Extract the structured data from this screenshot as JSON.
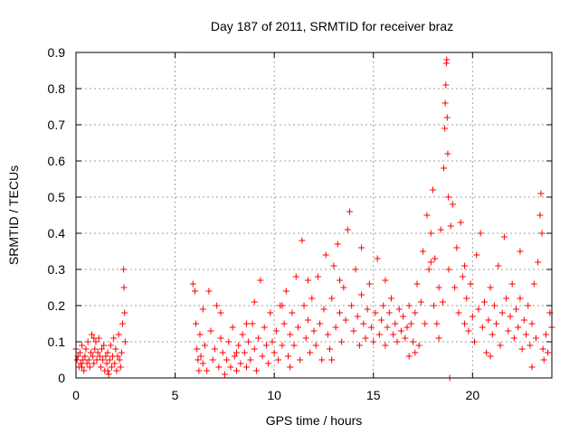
{
  "chart_data": {
    "type": "scatter",
    "title": "Day 187 of 2011, SRMTID for receiver braz",
    "xlabel": "GPS time / hours",
    "ylabel": "SRMTID / TECUs",
    "xlim": [
      0,
      24
    ],
    "ylim": [
      0,
      0.9
    ],
    "xticks": [
      "0",
      "5",
      "10",
      "15",
      "20"
    ],
    "yticks": [
      "0",
      "0.1",
      "0.2",
      "0.3",
      "0.4",
      "0.5",
      "0.6",
      "0.7",
      "0.8",
      "0.9"
    ],
    "grid": true,
    "marker": "+",
    "series": [
      {
        "color": "#ff0000",
        "points": [
          [
            0.0,
            0.08
          ],
          [
            0.05,
            0.05
          ],
          [
            0.1,
            0.06
          ],
          [
            0.15,
            0.03
          ],
          [
            0.2,
            0.07
          ],
          [
            0.25,
            0.04
          ],
          [
            0.3,
            0.09
          ],
          [
            0.35,
            0.05
          ],
          [
            0.4,
            0.02
          ],
          [
            0.45,
            0.06
          ],
          [
            0.5,
            0.08
          ],
          [
            0.55,
            0.04
          ],
          [
            0.6,
            0.1
          ],
          [
            0.65,
            0.05
          ],
          [
            0.7,
            0.03
          ],
          [
            0.75,
            0.07
          ],
          [
            0.8,
            0.12
          ],
          [
            0.85,
            0.06
          ],
          [
            0.9,
            0.04
          ],
          [
            0.95,
            0.08
          ],
          [
            1.0,
            0.1
          ],
          [
            1.05,
            0.05
          ],
          [
            1.1,
            0.07
          ],
          [
            1.15,
            0.11
          ],
          [
            1.2,
            0.06
          ],
          [
            1.25,
            0.03
          ],
          [
            1.3,
            0.08
          ],
          [
            1.35,
            0.05
          ],
          [
            1.4,
            0.09
          ],
          [
            1.45,
            0.02
          ],
          [
            1.5,
            0.06
          ],
          [
            1.55,
            0.04
          ],
          [
            1.6,
            0.07
          ],
          [
            1.65,
            0.01
          ],
          [
            1.7,
            0.05
          ],
          [
            1.75,
            0.09
          ],
          [
            1.8,
            0.03
          ],
          [
            1.85,
            0.06
          ],
          [
            1.9,
            0.11
          ],
          [
            1.95,
            0.04
          ],
          [
            2.0,
            0.08
          ],
          [
            2.05,
            0.02
          ],
          [
            2.1,
            0.06
          ],
          [
            2.15,
            0.12
          ],
          [
            2.2,
            0.05
          ],
          [
            2.25,
            0.03
          ],
          [
            2.3,
            0.07
          ],
          [
            2.35,
            0.15
          ],
          [
            2.4,
            0.3
          ],
          [
            2.42,
            0.25
          ],
          [
            2.45,
            0.18
          ],
          [
            2.48,
            0.1
          ],
          [
            0.3,
            0.03
          ],
          [
            0.9,
            0.11
          ],
          [
            1.6,
            0.02
          ],
          [
            5.9,
            0.26
          ],
          [
            6.0,
            0.24
          ],
          [
            6.05,
            0.15
          ],
          [
            6.1,
            0.08
          ],
          [
            6.15,
            0.05
          ],
          [
            6.2,
            0.02
          ],
          [
            6.25,
            0.12
          ],
          [
            6.3,
            0.06
          ],
          [
            6.4,
            0.04
          ],
          [
            6.5,
            0.09
          ],
          [
            6.6,
            0.02
          ],
          [
            6.7,
            0.24
          ],
          [
            6.8,
            0.13
          ],
          [
            6.9,
            0.05
          ],
          [
            7.0,
            0.08
          ],
          [
            7.1,
            0.2
          ],
          [
            7.2,
            0.03
          ],
          [
            7.3,
            0.11
          ],
          [
            7.4,
            0.07
          ],
          [
            7.5,
            0.01
          ],
          [
            7.6,
            0.05
          ],
          [
            7.7,
            0.1
          ],
          [
            7.8,
            0.03
          ],
          [
            7.9,
            0.14
          ],
          [
            8.0,
            0.06
          ],
          [
            8.1,
            0.02
          ],
          [
            8.2,
            0.09
          ],
          [
            8.3,
            0.04
          ],
          [
            8.4,
            0.12
          ],
          [
            8.5,
            0.07
          ],
          [
            8.6,
            0.03
          ],
          [
            8.7,
            0.1
          ],
          [
            8.8,
            0.05
          ],
          [
            8.9,
            0.15
          ],
          [
            9.0,
            0.08
          ],
          [
            9.1,
            0.02
          ],
          [
            9.2,
            0.11
          ],
          [
            9.3,
            0.27
          ],
          [
            9.4,
            0.06
          ],
          [
            9.5,
            0.14
          ],
          [
            9.6,
            0.09
          ],
          [
            9.7,
            0.04
          ],
          [
            9.8,
            0.18
          ],
          [
            9.9,
            0.1
          ],
          [
            10.0,
            0.07
          ],
          [
            10.1,
            0.13
          ],
          [
            10.2,
            0.05
          ],
          [
            10.3,
            0.2
          ],
          [
            10.4,
            0.09
          ],
          [
            10.5,
            0.15
          ],
          [
            10.6,
            0.24
          ],
          [
            10.7,
            0.06
          ],
          [
            10.8,
            0.12
          ],
          [
            10.9,
            0.18
          ],
          [
            11.0,
            0.09
          ],
          [
            11.1,
            0.28
          ],
          [
            11.2,
            0.14
          ],
          [
            11.3,
            0.05
          ],
          [
            11.4,
            0.38
          ],
          [
            11.5,
            0.2
          ],
          [
            11.6,
            0.11
          ],
          [
            11.7,
            0.16
          ],
          [
            11.8,
            0.07
          ],
          [
            11.9,
            0.22
          ],
          [
            12.0,
            0.13
          ],
          [
            12.1,
            0.09
          ],
          [
            12.2,
            0.28
          ],
          [
            12.3,
            0.15
          ],
          [
            12.4,
            0.05
          ],
          [
            12.5,
            0.19
          ],
          [
            12.6,
            0.34
          ],
          [
            12.7,
            0.12
          ],
          [
            12.8,
            0.08
          ],
          [
            12.9,
            0.22
          ],
          [
            13.0,
            0.31
          ],
          [
            13.1,
            0.14
          ],
          [
            13.2,
            0.37
          ],
          [
            13.3,
            0.18
          ],
          [
            13.4,
            0.1
          ],
          [
            13.5,
            0.25
          ],
          [
            13.6,
            0.16
          ],
          [
            13.7,
            0.41
          ],
          [
            13.8,
            0.46
          ],
          [
            13.9,
            0.2
          ],
          [
            14.0,
            0.13
          ],
          [
            14.1,
            0.3
          ],
          [
            14.2,
            0.17
          ],
          [
            14.3,
            0.09
          ],
          [
            14.4,
            0.23
          ],
          [
            14.5,
            0.15
          ],
          [
            14.6,
            0.11
          ],
          [
            14.7,
            0.19
          ],
          [
            14.8,
            0.26
          ],
          [
            14.9,
            0.14
          ],
          [
            15.0,
            0.1
          ],
          [
            15.1,
            0.18
          ],
          [
            15.2,
            0.33
          ],
          [
            15.3,
            0.12
          ],
          [
            15.4,
            0.16
          ],
          [
            15.5,
            0.2
          ],
          [
            15.6,
            0.09
          ],
          [
            15.7,
            0.14
          ],
          [
            15.8,
            0.18
          ],
          [
            15.9,
            0.22
          ],
          [
            16.0,
            0.12
          ],
          [
            16.1,
            0.15
          ],
          [
            16.2,
            0.1
          ],
          [
            16.3,
            0.19
          ],
          [
            16.4,
            0.13
          ],
          [
            16.5,
            0.17
          ],
          [
            16.6,
            0.11
          ],
          [
            16.7,
            0.14
          ],
          [
            16.8,
            0.2
          ],
          [
            16.9,
            0.15
          ],
          [
            17.0,
            0.1
          ],
          [
            17.1,
            0.18
          ],
          [
            17.2,
            0.26
          ],
          [
            17.3,
            0.09
          ],
          [
            17.4,
            0.21
          ],
          [
            17.5,
            0.35
          ],
          [
            17.6,
            0.15
          ],
          [
            17.7,
            0.45
          ],
          [
            17.8,
            0.3
          ],
          [
            17.9,
            0.4
          ],
          [
            18.0,
            0.52
          ],
          [
            18.05,
            0.2
          ],
          [
            18.1,
            0.33
          ],
          [
            18.2,
            0.15
          ],
          [
            18.3,
            0.25
          ],
          [
            18.4,
            0.41
          ],
          [
            18.5,
            0.21
          ],
          [
            18.55,
            0.58
          ],
          [
            18.6,
            0.69
          ],
          [
            18.62,
            0.76
          ],
          [
            18.65,
            0.81
          ],
          [
            18.68,
            0.87
          ],
          [
            18.7,
            0.88
          ],
          [
            18.72,
            0.72
          ],
          [
            18.75,
            0.62
          ],
          [
            18.78,
            0.5
          ],
          [
            18.8,
            0.3
          ],
          [
            18.85,
            0.0
          ],
          [
            18.9,
            0.42
          ],
          [
            19.0,
            0.48
          ],
          [
            19.1,
            0.25
          ],
          [
            19.2,
            0.36
          ],
          [
            19.3,
            0.18
          ],
          [
            19.4,
            0.43
          ],
          [
            19.5,
            0.28
          ],
          [
            19.6,
            0.15
          ],
          [
            19.7,
            0.22
          ],
          [
            19.8,
            0.13
          ],
          [
            19.9,
            0.26
          ],
          [
            20.0,
            0.17
          ],
          [
            20.1,
            0.1
          ],
          [
            20.2,
            0.34
          ],
          [
            20.3,
            0.19
          ],
          [
            20.4,
            0.4
          ],
          [
            20.5,
            0.14
          ],
          [
            20.6,
            0.21
          ],
          [
            20.7,
            0.07
          ],
          [
            20.8,
            0.16
          ],
          [
            20.9,
            0.25
          ],
          [
            21.0,
            0.12
          ],
          [
            21.1,
            0.2
          ],
          [
            21.2,
            0.15
          ],
          [
            21.3,
            0.31
          ],
          [
            21.4,
            0.09
          ],
          [
            21.5,
            0.18
          ],
          [
            21.6,
            0.39
          ],
          [
            21.7,
            0.22
          ],
          [
            21.8,
            0.13
          ],
          [
            21.9,
            0.17
          ],
          [
            22.0,
            0.26
          ],
          [
            22.1,
            0.11
          ],
          [
            22.2,
            0.19
          ],
          [
            22.3,
            0.14
          ],
          [
            22.4,
            0.22
          ],
          [
            22.5,
            0.08
          ],
          [
            22.6,
            0.16
          ],
          [
            22.7,
            0.12
          ],
          [
            22.8,
            0.2
          ],
          [
            22.9,
            0.09
          ],
          [
            23.0,
            0.15
          ],
          [
            23.1,
            0.26
          ],
          [
            23.2,
            0.11
          ],
          [
            23.3,
            0.32
          ],
          [
            23.4,
            0.45
          ],
          [
            23.45,
            0.51
          ],
          [
            23.5,
            0.4
          ],
          [
            23.55,
            0.08
          ],
          [
            23.6,
            0.05
          ],
          [
            23.7,
            0.12
          ],
          [
            23.8,
            0.07
          ],
          [
            23.9,
            0.18
          ],
          [
            24.0,
            0.14
          ],
          [
            7.3,
            0.18
          ],
          [
            8.1,
            0.07
          ],
          [
            9.0,
            0.21
          ],
          [
            10.8,
            0.03
          ],
          [
            11.7,
            0.27
          ],
          [
            12.9,
            0.05
          ],
          [
            14.4,
            0.36
          ],
          [
            15.6,
            0.27
          ],
          [
            16.8,
            0.06
          ],
          [
            17.9,
            0.32
          ],
          [
            18.3,
            0.11
          ],
          [
            19.6,
            0.31
          ],
          [
            20.9,
            0.06
          ],
          [
            22.4,
            0.35
          ],
          [
            23.0,
            0.03
          ],
          [
            13.3,
            0.27
          ],
          [
            10.4,
            0.2
          ],
          [
            8.6,
            0.15
          ],
          [
            6.4,
            0.19
          ],
          [
            17.1,
            0.07
          ]
        ]
      }
    ]
  }
}
